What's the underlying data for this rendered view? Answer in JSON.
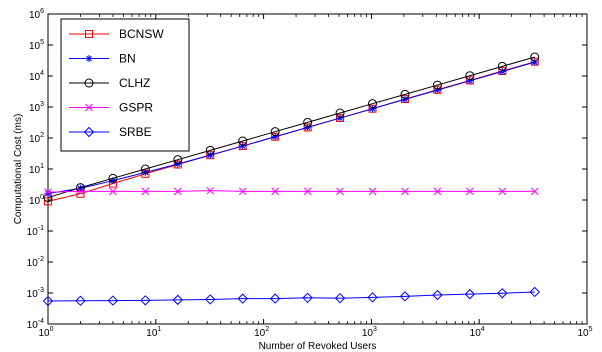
{
  "chart_data": {
    "type": "line",
    "title": "",
    "xlabel": "Number of Revoked Users",
    "ylabel": "Computational Cost (ms)",
    "x_scale": "log",
    "y_scale": "log",
    "xlim": [
      1,
      100000
    ],
    "ylim": [
      0.0001,
      1000000
    ],
    "grid": false,
    "legend_position": "top-left",
    "x_ticks": [
      {
        "base": "10",
        "exp": "0"
      },
      {
        "base": "10",
        "exp": "1"
      },
      {
        "base": "10",
        "exp": "2"
      },
      {
        "base": "10",
        "exp": "3"
      },
      {
        "base": "10",
        "exp": "4"
      },
      {
        "base": "10",
        "exp": "5"
      }
    ],
    "y_ticks": [
      {
        "base": "10",
        "exp": "-4"
      },
      {
        "base": "10",
        "exp": "-3"
      },
      {
        "base": "10",
        "exp": "-2"
      },
      {
        "base": "10",
        "exp": "-1"
      },
      {
        "base": "10",
        "exp": "0"
      },
      {
        "base": "10",
        "exp": "1"
      },
      {
        "base": "10",
        "exp": "2"
      },
      {
        "base": "10",
        "exp": "3"
      },
      {
        "base": "10",
        "exp": "4"
      },
      {
        "base": "10",
        "exp": "5"
      },
      {
        "base": "10",
        "exp": "6"
      }
    ],
    "x": [
      1,
      2,
      4,
      8,
      16,
      32,
      64,
      128,
      256,
      512,
      1024,
      2048,
      4096,
      8192,
      16384,
      32768
    ],
    "series": [
      {
        "name": "BCNSW",
        "color": "#ff0000",
        "marker": "square",
        "values": [
          0.9,
          1.6,
          3.4,
          7.0,
          14,
          28,
          55,
          110,
          220,
          440,
          880,
          1800,
          3600,
          7200,
          14500,
          29000
        ]
      },
      {
        "name": "BN",
        "color": "#0000ff",
        "marker": "asterisk",
        "values": [
          1.6,
          2.4,
          4.2,
          7.8,
          14.5,
          28,
          55,
          110,
          220,
          440,
          880,
          1760,
          3500,
          7000,
          14000,
          28000
        ]
      },
      {
        "name": "CLHZ",
        "color": "#000000",
        "marker": "circle",
        "values": [
          1.2,
          2.5,
          5,
          10,
          20,
          40,
          80,
          160,
          320,
          640,
          1280,
          2560,
          5100,
          10200,
          20500,
          41000
        ]
      },
      {
        "name": "GSPR",
        "color": "#ff00ff",
        "marker": "x",
        "values": [
          1.8,
          1.9,
          1.9,
          1.9,
          1.9,
          2.0,
          1.9,
          1.9,
          1.9,
          1.9,
          1.9,
          1.9,
          1.9,
          1.9,
          1.9,
          1.9
        ]
      },
      {
        "name": "SRBE",
        "color": "#0000ff",
        "marker": "diamond",
        "values": [
          0.00055,
          0.00056,
          0.00057,
          0.00058,
          0.0006,
          0.00062,
          0.00066,
          0.00066,
          0.0007,
          0.00068,
          0.00072,
          0.00078,
          0.00086,
          0.00092,
          0.00098,
          0.00108
        ]
      }
    ]
  }
}
